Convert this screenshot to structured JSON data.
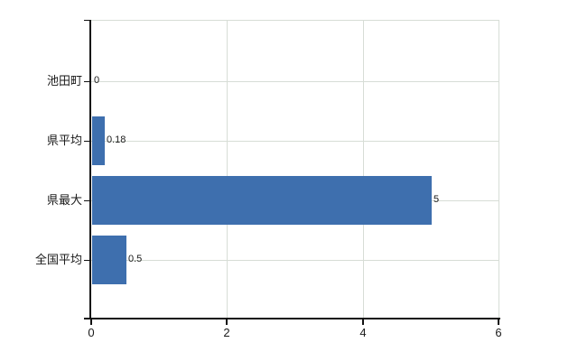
{
  "chart_data": {
    "type": "bar",
    "orientation": "horizontal",
    "title": "",
    "xlabel": "",
    "ylabel": "",
    "categories": [
      "池田町",
      "県平均",
      "県最大",
      "全国平均"
    ],
    "values": [
      0,
      0.18,
      5,
      0.5
    ],
    "value_labels": [
      "0",
      "0.18",
      "5",
      "0.5"
    ],
    "xlim": [
      0,
      6
    ],
    "xticks": [
      0,
      2,
      4,
      6
    ],
    "xtick_labels": [
      "0",
      "2",
      "4",
      "6"
    ],
    "grid": true,
    "legend": false
  },
  "style": {
    "bar_color": "#3e6fae",
    "grid_color": "#d7ddd6",
    "axis_color": "#111111",
    "text_color": "#1a1a1a",
    "background": "#ffffff"
  }
}
